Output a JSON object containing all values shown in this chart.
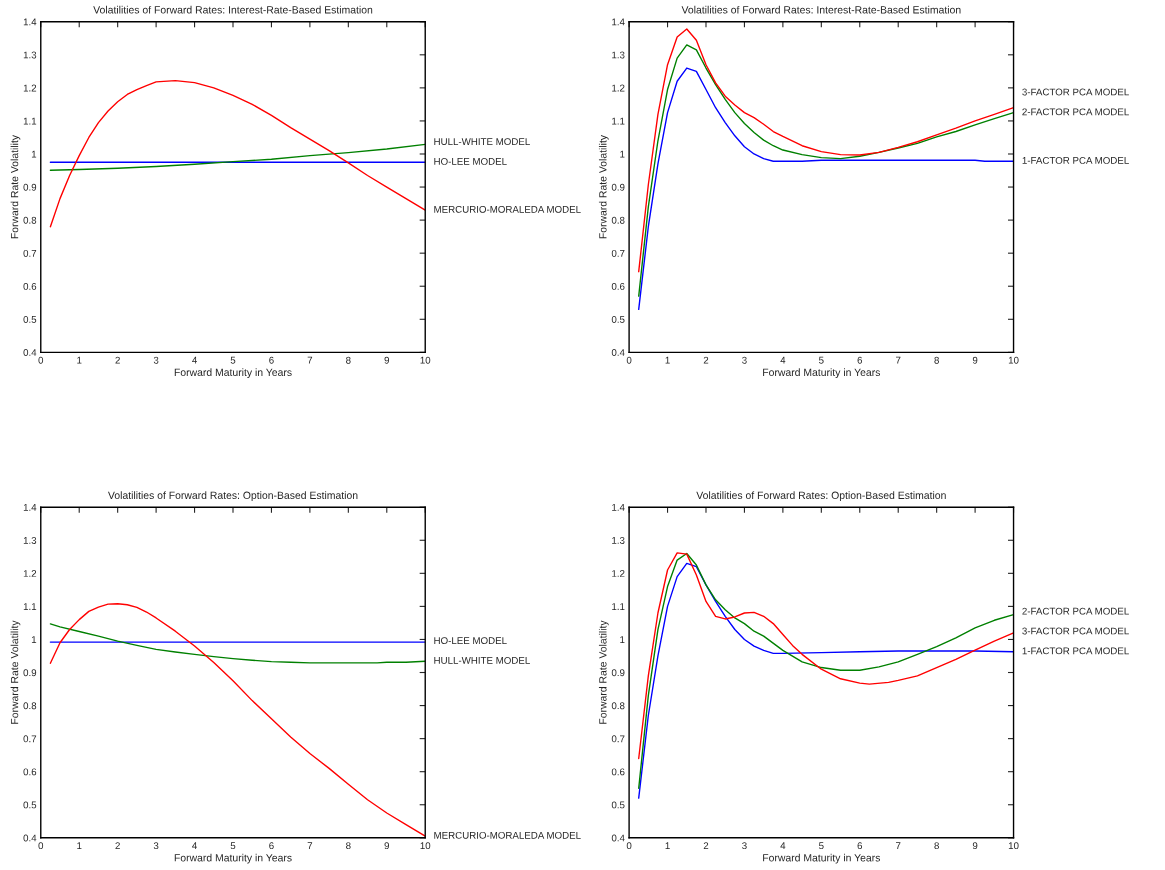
{
  "chart_data": [
    {
      "type": "line",
      "title": "Volatilities of Forward Rates: Interest-Rate-Based Estimation",
      "xlabel": "Forward Maturity in Years",
      "ylabel": "Forward Rate Volatility",
      "xlim": [
        0,
        10
      ],
      "ylim": [
        0.4,
        1.4
      ],
      "xticks": [
        0,
        1,
        2,
        3,
        4,
        5,
        6,
        7,
        8,
        9,
        10
      ],
      "yticks": [
        0.4,
        0.5,
        0.6,
        0.7,
        0.8,
        0.9,
        1,
        1.1,
        1.2,
        1.3,
        1.4
      ],
      "series": [
        {
          "name": "HO-LEE MODEL",
          "color": "#0000ff",
          "x": [
            0.25,
            10
          ],
          "values": [
            0.975,
            0.975
          ]
        },
        {
          "name": "HULL-WHITE MODEL",
          "color": "#008000",
          "x": [
            0.25,
            1,
            2,
            3,
            4,
            5,
            6,
            7,
            8,
            9,
            10
          ],
          "values": [
            0.951,
            0.953,
            0.957,
            0.962,
            0.969,
            0.977,
            0.984,
            0.995,
            1.004,
            1.015,
            1.029
          ]
        },
        {
          "name": "MERCURIO-MORALEDA MODEL",
          "color": "#ff0000",
          "x": [
            0.25,
            0.5,
            0.75,
            1,
            1.25,
            1.5,
            1.75,
            2,
            2.25,
            2.5,
            2.75,
            3,
            3.5,
            4,
            4.5,
            5,
            5.5,
            6,
            6.5,
            7,
            7.5,
            8,
            8.5,
            9,
            9.5,
            10
          ],
          "values": [
            0.78,
            0.865,
            0.935,
            0.995,
            1.05,
            1.095,
            1.13,
            1.158,
            1.18,
            1.195,
            1.207,
            1.218,
            1.222,
            1.216,
            1.2,
            1.177,
            1.15,
            1.117,
            1.08,
            1.045,
            1.01,
            0.973,
            0.935,
            0.9,
            0.865,
            0.83
          ]
        }
      ]
    },
    {
      "type": "line",
      "title": "Volatilities of Forward Rates: Interest-Rate-Based Estimation",
      "xlabel": "Forward Maturity in Years",
      "ylabel": "Forward Rate Volatility",
      "xlim": [
        0,
        10
      ],
      "ylim": [
        0.4,
        1.4
      ],
      "xticks": [
        0,
        1,
        2,
        3,
        4,
        5,
        6,
        7,
        8,
        9,
        10
      ],
      "yticks": [
        0.4,
        0.5,
        0.6,
        0.7,
        0.8,
        0.9,
        1,
        1.1,
        1.2,
        1.3,
        1.4
      ],
      "series": [
        {
          "name": "1-FACTOR PCA MODEL",
          "color": "#0000ff",
          "x": [
            0.25,
            0.5,
            0.75,
            1,
            1.25,
            1.5,
            1.75,
            2,
            2.25,
            2.5,
            2.75,
            3,
            3.25,
            3.5,
            3.75,
            4,
            4.5,
            5,
            6,
            7,
            8,
            9,
            9.25,
            10
          ],
          "values": [
            0.53,
            0.78,
            0.97,
            1.125,
            1.22,
            1.26,
            1.25,
            1.195,
            1.14,
            1.095,
            1.055,
            1.022,
            1.0,
            0.986,
            0.978,
            0.978,
            0.978,
            0.981,
            0.981,
            0.981,
            0.981,
            0.981,
            0.978,
            0.978
          ]
        },
        {
          "name": "2-FACTOR PCA MODEL",
          "color": "#008000",
          "x": [
            0.25,
            0.5,
            0.75,
            1,
            1.25,
            1.5,
            1.75,
            2,
            2.25,
            2.5,
            2.75,
            3,
            3.25,
            3.5,
            3.75,
            4,
            4.5,
            5,
            5.5,
            6,
            6.5,
            7,
            7.5,
            8,
            8.5,
            9,
            9.5,
            10
          ],
          "values": [
            0.57,
            0.84,
            1.04,
            1.195,
            1.29,
            1.33,
            1.315,
            1.26,
            1.21,
            1.165,
            1.125,
            1.092,
            1.065,
            1.042,
            1.025,
            1.012,
            0.998,
            0.989,
            0.986,
            0.993,
            1.005,
            1.018,
            1.032,
            1.052,
            1.068,
            1.088,
            1.107,
            1.125
          ]
        },
        {
          "name": "3-FACTOR PCA MODEL",
          "color": "#ff0000",
          "x": [
            0.25,
            0.5,
            0.75,
            1,
            1.25,
            1.5,
            1.75,
            2,
            2.25,
            2.5,
            2.75,
            3,
            3.25,
            3.5,
            3.75,
            4,
            4.5,
            5,
            5.5,
            6,
            6.5,
            7,
            7.5,
            8,
            8.5,
            9,
            9.5,
            10
          ],
          "values": [
            0.644,
            0.907,
            1.12,
            1.27,
            1.354,
            1.378,
            1.344,
            1.27,
            1.215,
            1.175,
            1.148,
            1.125,
            1.11,
            1.09,
            1.068,
            1.053,
            1.025,
            1.007,
            0.998,
            0.997,
            1.005,
            1.02,
            1.037,
            1.058,
            1.078,
            1.1,
            1.12,
            1.14
          ]
        }
      ]
    },
    {
      "type": "line",
      "title": "Volatilities of Forward Rates: Option-Based Estimation",
      "xlabel": "Forward Maturity in Years",
      "ylabel": "Forward Rate Volatility",
      "xlim": [
        0,
        10
      ],
      "ylim": [
        0.4,
        1.4
      ],
      "xticks": [
        0,
        1,
        2,
        3,
        4,
        5,
        6,
        7,
        8,
        9,
        10
      ],
      "yticks": [
        0.4,
        0.5,
        0.6,
        0.7,
        0.8,
        0.9,
        1,
        1.1,
        1.2,
        1.3,
        1.4
      ],
      "series": [
        {
          "name": "HO-LEE MODEL",
          "color": "#0000ff",
          "x": [
            0.25,
            10
          ],
          "values": [
            0.992,
            0.992
          ]
        },
        {
          "name": "HULL-WHITE MODEL",
          "color": "#008000",
          "x": [
            0.25,
            0.5,
            1,
            1.5,
            2,
            2.5,
            3,
            3.5,
            4,
            4.5,
            5,
            5.5,
            6,
            6.5,
            7,
            8,
            8.75,
            9,
            9.5,
            10
          ],
          "values": [
            1.047,
            1.038,
            1.024,
            1.01,
            0.995,
            0.982,
            0.97,
            0.962,
            0.955,
            0.948,
            0.942,
            0.937,
            0.933,
            0.931,
            0.929,
            0.929,
            0.929,
            0.931,
            0.931,
            0.934
          ]
        },
        {
          "name": "MERCURIO-MORALEDA MODEL",
          "color": "#ff0000",
          "x": [
            0.25,
            0.5,
            0.75,
            1,
            1.25,
            1.5,
            1.75,
            2,
            2.25,
            2.5,
            2.75,
            3,
            3.5,
            4,
            4.5,
            5,
            5.5,
            6,
            6.5,
            7,
            7.5,
            8,
            8.5,
            9,
            9.5,
            10
          ],
          "values": [
            0.928,
            0.99,
            1.03,
            1.06,
            1.085,
            1.098,
            1.107,
            1.108,
            1.105,
            1.097,
            1.083,
            1.065,
            1.025,
            0.98,
            0.93,
            0.875,
            0.815,
            0.76,
            0.705,
            0.655,
            0.61,
            0.562,
            0.515,
            0.475,
            0.44,
            0.405
          ]
        }
      ]
    },
    {
      "type": "line",
      "title": "Volatilities of Forward Rates: Option-Based Estimation",
      "xlabel": "Forward Maturity in Years",
      "ylabel": "Forward Rate Volatility",
      "xlim": [
        0,
        10
      ],
      "ylim": [
        0.4,
        1.4
      ],
      "xticks": [
        0,
        1,
        2,
        3,
        4,
        5,
        6,
        7,
        8,
        9,
        10
      ],
      "yticks": [
        0.4,
        0.5,
        0.6,
        0.7,
        0.8,
        0.9,
        1,
        1.1,
        1.2,
        1.3,
        1.4
      ],
      "series": [
        {
          "name": "1-FACTOR PCA MODEL",
          "color": "#0000ff",
          "x": [
            0.25,
            0.5,
            0.75,
            1,
            1.25,
            1.5,
            1.75,
            2,
            2.25,
            2.5,
            2.75,
            3,
            3.25,
            3.5,
            3.75,
            4,
            5,
            6,
            7,
            8,
            9,
            10
          ],
          "values": [
            0.52,
            0.77,
            0.95,
            1.1,
            1.19,
            1.23,
            1.22,
            1.165,
            1.115,
            1.07,
            1.03,
            1.0,
            0.98,
            0.967,
            0.958,
            0.958,
            0.96,
            0.963,
            0.965,
            0.965,
            0.965,
            0.963
          ]
        },
        {
          "name": "2-FACTOR PCA MODEL",
          "color": "#008000",
          "x": [
            0.25,
            0.5,
            0.75,
            1,
            1.25,
            1.5,
            1.75,
            2,
            2.25,
            2.5,
            2.75,
            3,
            3.25,
            3.5,
            4,
            4.5,
            5,
            5.5,
            6,
            6.5,
            7,
            7.5,
            8,
            8.5,
            9,
            9.5,
            10
          ],
          "values": [
            0.55,
            0.83,
            1.03,
            1.16,
            1.24,
            1.26,
            1.225,
            1.165,
            1.12,
            1.09,
            1.065,
            1.048,
            1.025,
            1.01,
            0.967,
            0.932,
            0.915,
            0.907,
            0.907,
            0.917,
            0.932,
            0.955,
            0.978,
            1.005,
            1.035,
            1.058,
            1.075
          ]
        },
        {
          "name": "3-FACTOR PCA MODEL",
          "color": "#ff0000",
          "x": [
            0.25,
            0.5,
            0.75,
            1,
            1.25,
            1.5,
            1.75,
            2,
            2.25,
            2.5,
            2.75,
            3,
            3.25,
            3.5,
            3.75,
            4,
            4.25,
            4.5,
            5,
            5.5,
            6,
            6.25,
            6.75,
            7,
            7.5,
            8,
            8.5,
            9,
            9.5,
            10
          ],
          "values": [
            0.64,
            0.89,
            1.08,
            1.21,
            1.262,
            1.258,
            1.195,
            1.115,
            1.07,
            1.062,
            1.068,
            1.08,
            1.082,
            1.07,
            1.048,
            1.015,
            0.982,
            0.955,
            0.91,
            0.881,
            0.868,
            0.865,
            0.87,
            0.876,
            0.89,
            0.915,
            0.94,
            0.968,
            0.995,
            1.02
          ]
        }
      ]
    }
  ]
}
